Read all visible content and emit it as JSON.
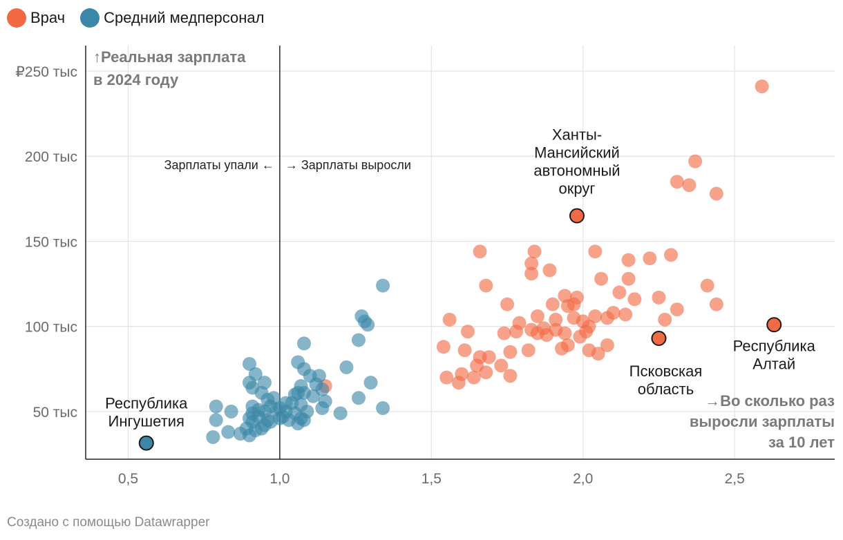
{
  "legend": [
    {
      "label": "Врач",
      "color": "#f26a44"
    },
    {
      "label": "Средний медперсонал",
      "color": "#3b87a8"
    }
  ],
  "footer": "Создано с помощью Datawrapper",
  "chart_data": {
    "type": "scatter",
    "title": "",
    "ylabel": [
      "↑Реальная зарплата",
      "в 2024 году"
    ],
    "xlabel": [
      "→Во сколько раз",
      "выросли зарплаты",
      "за 10 лет"
    ],
    "xlim": [
      0.36,
      2.83
    ],
    "ylim": [
      22000,
      265000
    ],
    "x_ticks": [
      0.5,
      1.0,
      1.5,
      2.0,
      2.5
    ],
    "x_tick_labels": [
      "0,5",
      "1,0",
      "1,5",
      "2,0",
      "2,5"
    ],
    "y_ticks": [
      50000,
      100000,
      150000,
      200000,
      250000
    ],
    "y_tick_labels": [
      "50 тыс",
      "100 тыс",
      "150 тыс",
      "200 тыс",
      "₽250 тыс"
    ],
    "reference_line_x": 1.0,
    "reference_labels": {
      "left": "Зарплаты упали ←",
      "right": "→ Зарплаты выросли"
    },
    "series": [
      {
        "name": "Врач",
        "color": "#f26a44",
        "points": [
          [
            2.59,
            241000
          ],
          [
            2.37,
            197000
          ],
          [
            2.31,
            185000
          ],
          [
            2.35,
            183000
          ],
          [
            2.44,
            178000
          ],
          [
            1.66,
            144000
          ],
          [
            1.84,
            144000
          ],
          [
            2.04,
            144000
          ],
          [
            2.15,
            139000
          ],
          [
            2.22,
            140000
          ],
          [
            2.29,
            142000
          ],
          [
            1.83,
            137000
          ],
          [
            1.83,
            131000
          ],
          [
            1.89,
            133000
          ],
          [
            2.06,
            128000
          ],
          [
            2.15,
            128000
          ],
          [
            1.68,
            124000
          ],
          [
            2.12,
            120000
          ],
          [
            2.41,
            124000
          ],
          [
            1.75,
            113000
          ],
          [
            1.94,
            118000
          ],
          [
            1.98,
            117000
          ],
          [
            2.17,
            116000
          ],
          [
            2.25,
            117000
          ],
          [
            1.9,
            113000
          ],
          [
            1.95,
            112000
          ],
          [
            1.97,
            113000
          ],
          [
            2.44,
            113000
          ],
          [
            2.31,
            110000
          ],
          [
            1.56,
            104000
          ],
          [
            1.79,
            102000
          ],
          [
            1.85,
            106000
          ],
          [
            1.91,
            104000
          ],
          [
            1.97,
            105000
          ],
          [
            2.0,
            103000
          ],
          [
            2.04,
            106000
          ],
          [
            2.08,
            105000
          ],
          [
            2.1,
            108000
          ],
          [
            2.14,
            107000
          ],
          [
            2.27,
            104000
          ],
          [
            1.62,
            97000
          ],
          [
            1.74,
            96000
          ],
          [
            1.78,
            97000
          ],
          [
            1.83,
            98000
          ],
          [
            1.85,
            96000
          ],
          [
            1.87,
            99000
          ],
          [
            1.88,
            95000
          ],
          [
            1.91,
            98000
          ],
          [
            1.94,
            96000
          ],
          [
            1.99,
            94000
          ],
          [
            2.01,
            97000
          ],
          [
            2.02,
            100000
          ],
          [
            1.54,
            88000
          ],
          [
            1.61,
            86000
          ],
          [
            1.76,
            85000
          ],
          [
            1.82,
            86000
          ],
          [
            1.93,
            87000
          ],
          [
            1.95,
            89000
          ],
          [
            2.02,
            86000
          ],
          [
            2.05,
            84000
          ],
          [
            2.08,
            89000
          ],
          [
            1.66,
            82000
          ],
          [
            1.69,
            82000
          ],
          [
            1.65,
            77000
          ],
          [
            1.73,
            77000
          ],
          [
            1.55,
            70000
          ],
          [
            1.59,
            67000
          ],
          [
            1.6,
            72000
          ],
          [
            1.64,
            70000
          ],
          [
            1.68,
            73000
          ],
          [
            1.76,
            71000
          ],
          [
            1.15,
            65000
          ]
        ]
      },
      {
        "name": "Средний медперсонал",
        "color": "#3b87a8",
        "points": [
          [
            1.34,
            124000
          ],
          [
            1.27,
            106000
          ],
          [
            1.28,
            103000
          ],
          [
            1.29,
            101000
          ],
          [
            1.26,
            92000
          ],
          [
            1.08,
            90000
          ],
          [
            0.9,
            78000
          ],
          [
            1.06,
            79000
          ],
          [
            1.08,
            75000
          ],
          [
            1.1,
            71000
          ],
          [
            1.13,
            71000
          ],
          [
            1.22,
            76000
          ],
          [
            0.92,
            72000
          ],
          [
            0.9,
            67000
          ],
          [
            0.95,
            67000
          ],
          [
            0.91,
            64000
          ],
          [
            0.94,
            61000
          ],
          [
            1.07,
            65000
          ],
          [
            1.12,
            66000
          ],
          [
            1.14,
            63000
          ],
          [
            1.3,
            67000
          ],
          [
            1.26,
            58000
          ],
          [
            0.96,
            57000
          ],
          [
            0.98,
            58000
          ],
          [
            1.05,
            60000
          ],
          [
            1.06,
            61000
          ],
          [
            1.08,
            61000
          ],
          [
            1.11,
            59000
          ],
          [
            1.15,
            56000
          ],
          [
            1.02,
            55000
          ],
          [
            1.04,
            55000
          ],
          [
            1.07,
            54000
          ],
          [
            0.79,
            53000
          ],
          [
            0.84,
            50000
          ],
          [
            0.91,
            53000
          ],
          [
            0.93,
            51000
          ],
          [
            0.95,
            50000
          ],
          [
            0.97,
            53000
          ],
          [
            0.99,
            51000
          ],
          [
            1.0,
            52000
          ],
          [
            1.02,
            50000
          ],
          [
            1.05,
            49000
          ],
          [
            1.09,
            50000
          ],
          [
            1.14,
            52000
          ],
          [
            1.34,
            52000
          ],
          [
            1.2,
            49000
          ],
          [
            0.79,
            45000
          ],
          [
            0.9,
            46000
          ],
          [
            0.91,
            44000
          ],
          [
            0.93,
            47000
          ],
          [
            0.96,
            45000
          ],
          [
            1.0,
            46000
          ],
          [
            1.01,
            47000
          ],
          [
            1.03,
            45000
          ],
          [
            1.07,
            46000
          ],
          [
            1.08,
            45000
          ],
          [
            1.06,
            43000
          ],
          [
            0.83,
            38000
          ],
          [
            0.87,
            37000
          ],
          [
            0.89,
            40000
          ],
          [
            0.9,
            36000
          ],
          [
            0.92,
            39000
          ],
          [
            0.94,
            40000
          ],
          [
            0.95,
            42000
          ],
          [
            0.97,
            44000
          ],
          [
            0.78,
            35000
          ],
          [
            0.91,
            49000
          ]
        ]
      }
    ],
    "highlighted": [
      {
        "label": [
          "Ханты-",
          "Мансийский",
          "автономный",
          "округ"
        ],
        "x": 1.98,
        "y": 165000,
        "series": "Врач"
      },
      {
        "label": [
          "Псковская",
          "область"
        ],
        "x": 2.25,
        "y": 93000,
        "series": "Врач"
      },
      {
        "label": [
          "Республика",
          "Алтай"
        ],
        "x": 2.63,
        "y": 101000,
        "series": "Врач"
      },
      {
        "label": [
          "Республика",
          "Ингушетия"
        ],
        "x": 0.56,
        "y": 31500,
        "series": "Средний медперсонал"
      }
    ]
  }
}
